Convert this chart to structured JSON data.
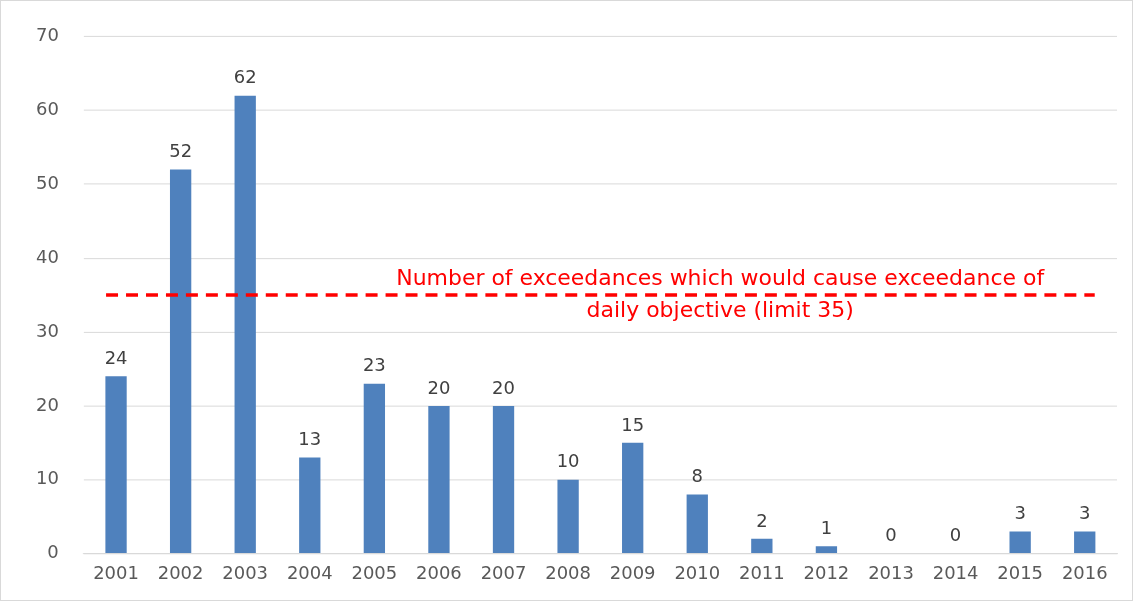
{
  "chart_data": {
    "type": "bar",
    "categories": [
      "2001",
      "2002",
      "2003",
      "2004",
      "2005",
      "2006",
      "2007",
      "2008",
      "2009",
      "2010",
      "2011",
      "2012",
      "2013",
      "2014",
      "2015",
      "2016"
    ],
    "values": [
      24,
      52,
      62,
      13,
      23,
      20,
      20,
      10,
      15,
      8,
      2,
      1,
      0,
      0,
      3,
      3
    ],
    "color": "#4f81bd",
    "ylim": [
      0,
      70
    ],
    "yticks": [
      0,
      10,
      20,
      30,
      40,
      50,
      60,
      70
    ],
    "grid": "y",
    "legend": false,
    "data_labels": true,
    "ref_lines": [
      {
        "axis": "y",
        "value": 35,
        "label": "Number of exceedances which would cause exceedance of daily objective (limit 35)",
        "color": "#ff0000",
        "line_style": "dashed"
      }
    ]
  }
}
